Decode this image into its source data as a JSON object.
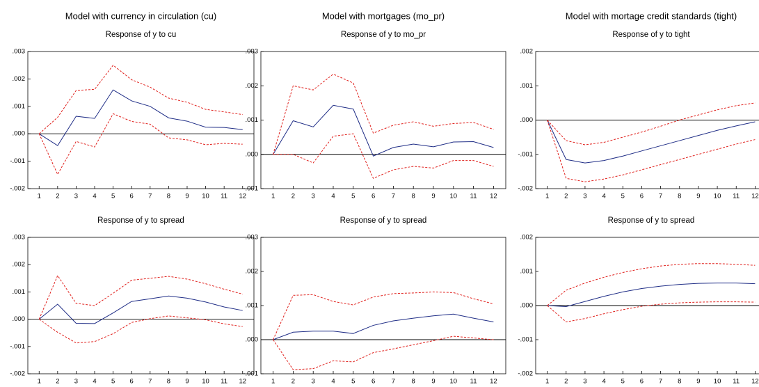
{
  "chart_data": [
    {
      "type": "line",
      "title": "Model with currency in circulation (cu)",
      "subtitle": "Response of y to cu",
      "categories": [
        "1",
        "2",
        "3",
        "4",
        "5",
        "6",
        "7",
        "8",
        "9",
        "10",
        "11",
        "12"
      ],
      "ylim": [
        -0.002,
        0.003
      ],
      "yticks": [
        {
          "value": -0.002,
          "label": "-.002"
        },
        {
          "value": -0.001,
          "label": "-.001"
        },
        {
          "value": 0,
          "label": ".000"
        },
        {
          "value": 0.001,
          "label": ".001"
        },
        {
          "value": 0.002,
          "label": ".002"
        },
        {
          "value": 0.003,
          "label": ".003"
        }
      ],
      "reference_line": 0,
      "series": [
        {
          "color": "#1f2d86",
          "style": "solid",
          "values": [
            0,
            -0.00043,
            0.00064,
            0.00056,
            0.0016,
            0.0012,
            0.001,
            0.00058,
            0.00046,
            0.00024,
            0.00023,
            0.00015
          ]
        },
        {
          "color": "#e0201c",
          "style": "dashed",
          "values": [
            0,
            0.0006,
            0.00158,
            0.00162,
            0.0025,
            0.00197,
            0.0017,
            0.0013,
            0.00115,
            0.00089,
            0.0008,
            0.0007
          ]
        },
        {
          "color": "#e0201c",
          "style": "dashed",
          "values": [
            0,
            -0.00148,
            -0.00028,
            -0.00048,
            0.00073,
            0.00045,
            0.00035,
            -0.00015,
            -0.00022,
            -0.0004,
            -0.00035,
            -0.00038
          ]
        }
      ]
    },
    {
      "type": "line",
      "title": "Model with mortgages (mo_pr)",
      "subtitle": "Response of y to mo_pr",
      "categories": [
        "1",
        "2",
        "3",
        "4",
        "5",
        "6",
        "7",
        "8",
        "9",
        "10",
        "11",
        "12"
      ],
      "ylim": [
        -0.001,
        0.003
      ],
      "yticks": [
        {
          "value": -0.001,
          "label": "-.001"
        },
        {
          "value": 0,
          "label": ".000"
        },
        {
          "value": 0.001,
          "label": ".001"
        },
        {
          "value": 0.002,
          "label": ".002"
        },
        {
          "value": 0.003,
          "label": ".003"
        }
      ],
      "reference_line": 0,
      "series": [
        {
          "color": "#1f2d86",
          "style": "solid",
          "values": [
            0,
            0.00098,
            0.0008,
            0.00143,
            0.00132,
            -5e-05,
            0.0002,
            0.0003,
            0.00022,
            0.00036,
            0.00037,
            0.0002
          ]
        },
        {
          "color": "#e0201c",
          "style": "dashed",
          "values": [
            0,
            0.002,
            0.00188,
            0.00234,
            0.00208,
            0.00062,
            0.00085,
            0.00095,
            0.00082,
            0.0009,
            0.00093,
            0.00073
          ]
        },
        {
          "color": "#e0201c",
          "style": "dashed",
          "values": [
            0,
            0,
            -0.00025,
            0.00053,
            0.0006,
            -0.0007,
            -0.00045,
            -0.00035,
            -0.0004,
            -0.00018,
            -0.00018,
            -0.00035
          ]
        }
      ]
    },
    {
      "type": "line",
      "title": "Model with mortage credit standards (tight)",
      "subtitle": "Response of y to tight",
      "categories": [
        "1",
        "2",
        "3",
        "4",
        "5",
        "6",
        "7",
        "8",
        "9",
        "10",
        "11",
        "12"
      ],
      "ylim": [
        -0.002,
        0.002
      ],
      "yticks": [
        {
          "value": -0.002,
          "label": "-.002"
        },
        {
          "value": -0.001,
          "label": "-.001"
        },
        {
          "value": 0,
          "label": ".000"
        },
        {
          "value": 0.001,
          "label": ".001"
        },
        {
          "value": 0.002,
          "label": ".002"
        }
      ],
      "reference_line": 0,
      "series": [
        {
          "color": "#1f2d86",
          "style": "solid",
          "values": [
            0,
            -0.00115,
            -0.00125,
            -0.00118,
            -0.00105,
            -0.0009,
            -0.00075,
            -0.0006,
            -0.00045,
            -0.0003,
            -0.00017,
            -5e-05
          ]
        },
        {
          "color": "#e0201c",
          "style": "dashed",
          "values": [
            0,
            -0.0006,
            -0.00072,
            -0.00065,
            -0.0005,
            -0.00035,
            -0.00018,
            0,
            0.00015,
            0.0003,
            0.00042,
            0.0005
          ]
        },
        {
          "color": "#e0201c",
          "style": "dashed",
          "values": [
            0,
            -0.0017,
            -0.0018,
            -0.00172,
            -0.0016,
            -0.00145,
            -0.0013,
            -0.00115,
            -0.001,
            -0.00085,
            -0.0007,
            -0.00057
          ]
        }
      ]
    },
    {
      "type": "line",
      "subtitle": "Response of y to spread",
      "categories": [
        "1",
        "2",
        "3",
        "4",
        "5",
        "6",
        "7",
        "8",
        "9",
        "10",
        "11",
        "12"
      ],
      "ylim": [
        -0.002,
        0.003
      ],
      "yticks": [
        {
          "value": -0.002,
          "label": "-.002"
        },
        {
          "value": -0.001,
          "label": "-.001"
        },
        {
          "value": 0,
          "label": ".000"
        },
        {
          "value": 0.001,
          "label": ".001"
        },
        {
          "value": 0.002,
          "label": ".002"
        },
        {
          "value": 0.003,
          "label": ".003"
        }
      ],
      "reference_line": 0,
      "series": [
        {
          "color": "#1f2d86",
          "style": "solid",
          "values": [
            0,
            0.00055,
            -0.00015,
            -0.00016,
            0.00023,
            0.00065,
            0.00075,
            0.00085,
            0.00077,
            0.00063,
            0.00045,
            0.00032
          ]
        },
        {
          "color": "#e0201c",
          "style": "dashed",
          "values": [
            0,
            0.0016,
            0.00058,
            0.0005,
            0.00095,
            0.00143,
            0.0015,
            0.00157,
            0.00147,
            0.0013,
            0.0011,
            0.00092
          ]
        },
        {
          "color": "#e0201c",
          "style": "dashed",
          "values": [
            0,
            -0.00048,
            -0.00087,
            -0.00082,
            -0.00053,
            -0.00012,
            2e-05,
            0.00012,
            5e-05,
            -2e-05,
            -0.00017,
            -0.00027
          ]
        }
      ]
    },
    {
      "type": "line",
      "subtitle": "Response of y to spread",
      "categories": [
        "1",
        "2",
        "3",
        "4",
        "5",
        "6",
        "7",
        "8",
        "9",
        "10",
        "11",
        "12"
      ],
      "ylim": [
        -0.001,
        0.003
      ],
      "yticks": [
        {
          "value": -0.001,
          "label": "-.001"
        },
        {
          "value": 0,
          "label": ".000"
        },
        {
          "value": 0.001,
          "label": ".001"
        },
        {
          "value": 0.002,
          "label": ".002"
        },
        {
          "value": 0.003,
          "label": ".003"
        }
      ],
      "reference_line": 0,
      "series": [
        {
          "color": "#1f2d86",
          "style": "solid",
          "values": [
            0,
            0.00022,
            0.00025,
            0.00025,
            0.00018,
            0.00042,
            0.00055,
            0.00063,
            0.0007,
            0.00075,
            0.00063,
            0.00052
          ]
        },
        {
          "color": "#e0201c",
          "style": "dashed",
          "values": [
            0,
            0.0013,
            0.00132,
            0.00112,
            0.00102,
            0.00125,
            0.00135,
            0.00137,
            0.0014,
            0.00138,
            0.0012,
            0.00105
          ]
        },
        {
          "color": "#e0201c",
          "style": "dashed",
          "values": [
            0,
            -0.00088,
            -0.00085,
            -0.00062,
            -0.00065,
            -0.00038,
            -0.00027,
            -0.00015,
            -3e-05,
            0.0001,
            5e-05,
            0
          ]
        }
      ]
    },
    {
      "type": "line",
      "subtitle": "Response of y to spread",
      "categories": [
        "1",
        "2",
        "3",
        "4",
        "5",
        "6",
        "7",
        "8",
        "9",
        "10",
        "11",
        "12"
      ],
      "ylim": [
        -0.002,
        0.002
      ],
      "yticks": [
        {
          "value": -0.002,
          "label": "-.002"
        },
        {
          "value": -0.001,
          "label": "-.001"
        },
        {
          "value": 0,
          "label": ".000"
        },
        {
          "value": 0.001,
          "label": ".001"
        },
        {
          "value": 0.002,
          "label": ".002"
        }
      ],
      "reference_line": 0,
      "series": [
        {
          "color": "#1f2d86",
          "style": "solid",
          "values": [
            0,
            -3e-05,
            0.00012,
            0.00027,
            0.0004,
            0.0005,
            0.00057,
            0.00062,
            0.00065,
            0.00066,
            0.00066,
            0.00064
          ]
        },
        {
          "color": "#e0201c",
          "style": "dashed",
          "values": [
            0,
            0.00045,
            0.00066,
            0.00083,
            0.00097,
            0.00108,
            0.00116,
            0.00121,
            0.00123,
            0.00123,
            0.00121,
            0.00118
          ]
        },
        {
          "color": "#e0201c",
          "style": "dashed",
          "values": [
            0,
            -0.00048,
            -0.00038,
            -0.00024,
            -0.00012,
            -2e-05,
            4e-05,
            8e-05,
            0.0001,
            0.00011,
            0.00011,
            0.0001
          ]
        }
      ]
    }
  ]
}
